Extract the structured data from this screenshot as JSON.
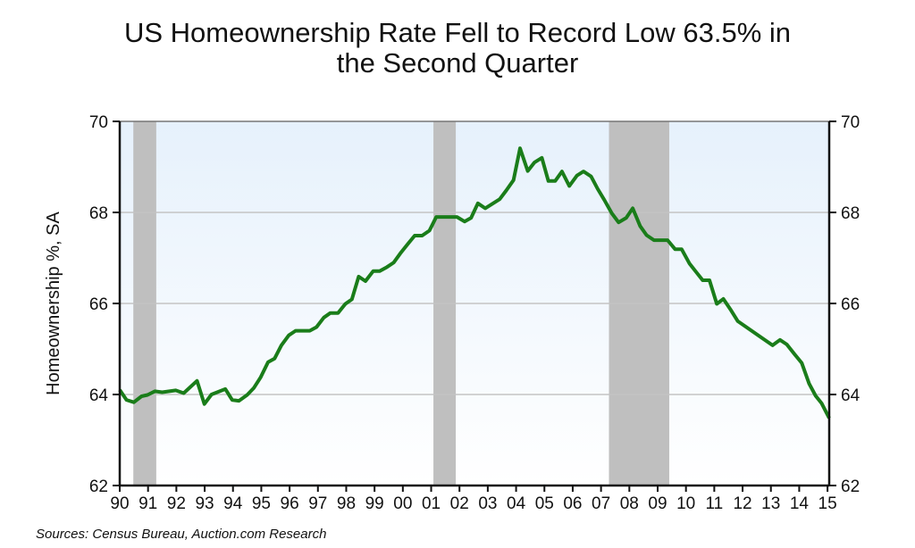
{
  "chart_data": {
    "type": "line",
    "title_line1": "US Homeownership Rate Fell to Record Low 63.5% in",
    "title_line2": "the Second Quarter",
    "ylabel": "Homeownership %, SA",
    "xlabel": "",
    "source": "Sources: Census Bureau, Auction.com Research",
    "ylim": [
      62,
      70
    ],
    "xlim": [
      1990,
      2015.06
    ],
    "yticks": [
      62,
      64,
      66,
      68,
      70
    ],
    "xticks": [
      1990,
      1991,
      1992,
      1993,
      1994,
      1995,
      1996,
      1997,
      1998,
      1999,
      2000,
      2001,
      2002,
      2003,
      2004,
      2005,
      2006,
      2007,
      2008,
      2009,
      2010,
      2011,
      2012,
      2013,
      2014,
      2015
    ],
    "xtick_labels": [
      "90",
      "91",
      "92",
      "93",
      "94",
      "95",
      "96",
      "97",
      "98",
      "99",
      "00",
      "01",
      "02",
      "03",
      "04",
      "05",
      "06",
      "07",
      "08",
      "09",
      "10",
      "11",
      "12",
      "13",
      "14",
      "15"
    ],
    "grid": true,
    "line_color": "#1a7d1a",
    "recession_color": "#bfbfbf",
    "recessions": [
      [
        1990.48,
        1991.29
      ],
      [
        2001.08,
        2001.87
      ],
      [
        2007.28,
        2009.41
      ]
    ],
    "series": [
      {
        "name": "Homeownership rate",
        "x": [
          1990.0,
          1990.24,
          1990.5,
          1990.77,
          1990.98,
          1991.24,
          1991.5,
          1991.98,
          1992.26,
          1992.73,
          1992.99,
          1993.24,
          1993.73,
          1993.97,
          1994.21,
          1994.5,
          1994.73,
          1994.97,
          1995.24,
          1995.47,
          1995.71,
          1995.97,
          1996.21,
          1996.71,
          1996.95,
          1997.21,
          1997.44,
          1997.71,
          1997.97,
          1998.2,
          1998.44,
          1998.68,
          1998.95,
          1999.18,
          1999.44,
          1999.68,
          1999.91,
          2000.18,
          2000.42,
          2000.68,
          2000.94,
          2001.18,
          2001.91,
          2002.18,
          2002.41,
          2002.65,
          2002.91,
          2003.42,
          2003.65,
          2003.91,
          2004.14,
          2004.41,
          2004.65,
          2004.91,
          2005.14,
          2005.38,
          2005.62,
          2005.88,
          2006.15,
          2006.38,
          2006.65,
          2006.88,
          2007.12,
          2007.38,
          2007.62,
          2007.89,
          2008.12,
          2008.38,
          2008.61,
          2008.87,
          2009.35,
          2009.62,
          2009.85,
          2010.12,
          2010.36,
          2010.59,
          2010.83,
          2011.09,
          2011.32,
          2011.57,
          2011.83,
          2013.06,
          2013.32,
          2013.56,
          2013.83,
          2014.09,
          2014.35,
          2014.58,
          2014.79,
          2015.06
        ],
        "values": [
          64.1,
          63.88,
          63.83,
          63.96,
          63.99,
          64.07,
          64.05,
          64.09,
          64.03,
          64.3,
          63.79,
          64.0,
          64.12,
          63.88,
          63.86,
          63.99,
          64.14,
          64.37,
          64.71,
          64.79,
          65.08,
          65.3,
          65.4,
          65.4,
          65.48,
          65.69,
          65.79,
          65.79,
          65.99,
          66.09,
          66.59,
          66.49,
          66.71,
          66.71,
          66.8,
          66.9,
          67.1,
          67.31,
          67.49,
          67.49,
          67.6,
          67.9,
          67.9,
          67.8,
          67.88,
          68.2,
          68.09,
          68.29,
          68.48,
          68.71,
          69.41,
          68.91,
          69.1,
          69.2,
          68.69,
          68.69,
          68.9,
          68.58,
          68.81,
          68.9,
          68.79,
          68.52,
          68.27,
          67.98,
          67.78,
          67.88,
          68.09,
          67.7,
          67.5,
          67.39,
          67.39,
          67.19,
          67.19,
          66.88,
          66.69,
          66.51,
          66.51,
          65.99,
          66.1,
          65.87,
          65.61,
          65.08,
          65.2,
          65.1,
          64.89,
          64.69,
          64.24,
          63.97,
          63.81,
          63.48
        ]
      }
    ]
  }
}
